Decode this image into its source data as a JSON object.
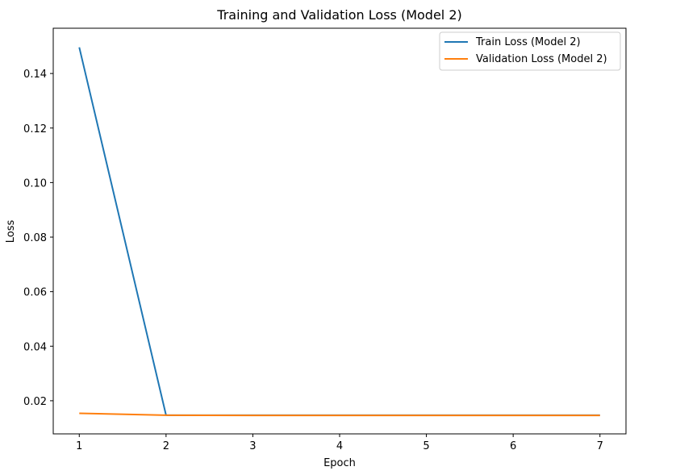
{
  "chart_data": {
    "type": "line",
    "title": "Training and Validation Loss (Model 2)",
    "xlabel": "Epoch",
    "ylabel": "Loss",
    "xlim": [
      0.7,
      7.3
    ],
    "ylim": [
      0.00785,
      0.1566
    ],
    "x": [
      1,
      2,
      3,
      4,
      5,
      6,
      7
    ],
    "x_ticks": [
      1,
      2,
      3,
      4,
      5,
      6,
      7
    ],
    "y_ticks": [
      0.02,
      0.04,
      0.06,
      0.08,
      0.1,
      0.12,
      0.14
    ],
    "y_tick_labels": [
      "0.02",
      "0.04",
      "0.06",
      "0.08",
      "0.10",
      "0.12",
      "0.14"
    ],
    "grid": false,
    "legend_position": "top-right",
    "series": [
      {
        "name": "Train Loss (Model 2)",
        "color": "#1f77b4",
        "values": [
          0.1496,
          0.0147,
          0.0147,
          0.0147,
          0.0147,
          0.0147,
          0.0147
        ]
      },
      {
        "name": "Validation Loss (Model 2)",
        "color": "#ff7f0e",
        "values": [
          0.0154,
          0.0147,
          0.0146,
          0.0146,
          0.0146,
          0.0146,
          0.0146
        ]
      }
    ]
  }
}
